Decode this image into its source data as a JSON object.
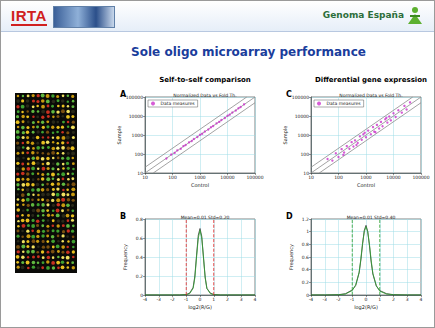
{
  "header": {
    "logos": [
      "IRTA",
      "Genoma España"
    ],
    "title": "Sole oligo microarray performance"
  },
  "chart_data": [
    {
      "panel": "A",
      "heading": "Self-to-self comparison",
      "type": "scatter",
      "subtitle": "Normalized Data vs Fold Th.",
      "x_label": "Control",
      "y_label": "Sample",
      "log": true,
      "grid": true,
      "legend": "top-left",
      "xlim": [
        10,
        100000
      ],
      "ylim": [
        10,
        100000
      ],
      "xticks": [
        10,
        100,
        1000,
        10000,
        100000
      ],
      "yticks": [
        10,
        100,
        1000,
        10000,
        100000
      ],
      "series": [
        {
          "type": "line",
          "color": "#8c8c8c",
          "x": [
            10,
            50000
          ],
          "values": [
            20,
            100000
          ]
        },
        {
          "type": "line",
          "color": "#8c8c8c",
          "x": [
            10,
            100000
          ],
          "values": [
            10,
            100000
          ]
        },
        {
          "type": "line",
          "color": "#8c8c8c",
          "x": [
            20,
            100000
          ],
          "values": [
            10,
            50000
          ]
        },
        {
          "name": "Data measures",
          "type": "scatter",
          "color": "#cc33cc",
          "marker": "circle",
          "x": [
            60,
            90,
            120,
            150,
            200,
            250,
            300,
            400,
            500,
            600,
            800,
            1000,
            1200,
            1500,
            2000,
            2500,
            3000,
            4000,
            5000,
            6000,
            8000,
            10000,
            12000,
            15000,
            20000,
            25000,
            30000,
            40000
          ],
          "values": [
            58,
            95,
            115,
            155,
            190,
            260,
            295,
            410,
            480,
            620,
            790,
            1040,
            1170,
            1530,
            1950,
            2580,
            2950,
            4100,
            4900,
            6150,
            7800,
            10300,
            11800,
            15400,
            19600,
            25500,
            29500,
            41000
          ]
        }
      ]
    },
    {
      "panel": "C",
      "heading": "Differential gene expression",
      "type": "scatter",
      "subtitle": "Normalized Data vs Fold Th.",
      "x_label": "Control",
      "y_label": "Sample",
      "log": true,
      "grid": true,
      "legend": "top-left",
      "xlim": [
        10,
        100000
      ],
      "ylim": [
        10,
        100000
      ],
      "xticks": [
        10,
        100,
        1000,
        10000,
        100000
      ],
      "yticks": [
        10,
        100,
        1000,
        10000,
        100000
      ],
      "series": [
        {
          "type": "line",
          "color": "#8c8c8c",
          "x": [
            10,
            50000
          ],
          "values": [
            20,
            100000
          ]
        },
        {
          "type": "line",
          "color": "#8c8c8c",
          "x": [
            10,
            100000
          ],
          "values": [
            10,
            100000
          ]
        },
        {
          "type": "line",
          "color": "#8c8c8c",
          "x": [
            20,
            100000
          ],
          "values": [
            10,
            50000
          ]
        },
        {
          "name": "Data measures",
          "type": "scatter",
          "color": "#cc33cc",
          "marker": "circle",
          "x": [
            40,
            60,
            80,
            100,
            130,
            160,
            200,
            250,
            300,
            350,
            400,
            500,
            600,
            700,
            800,
            1000,
            1200,
            1500,
            1800,
            2000,
            2500,
            3000,
            3500,
            4000,
            5000,
            6000,
            7000,
            8000,
            10000,
            12000,
            15000,
            20000,
            25000,
            30000,
            40000,
            150,
            450,
            900,
            2200,
            5500
          ],
          "values": [
            55,
            45,
            110,
            70,
            180,
            120,
            260,
            190,
            420,
            250,
            520,
            380,
            850,
            560,
            1100,
            760,
            1700,
            1100,
            2600,
            1500,
            3400,
            2200,
            4900,
            2900,
            6800,
            4500,
            9500,
            5900,
            14000,
            8800,
            20000,
            15000,
            34000,
            22000,
            52000,
            90,
            300,
            1300,
            1400,
            8000
          ]
        }
      ]
    },
    {
      "panel": "B",
      "type": "line",
      "subtitle": "Mean=0.01 Std=0.20",
      "x_label": "log2(R/G)",
      "y_label": "Frequency",
      "grid": true,
      "xlim": [
        -4,
        4
      ],
      "ylim": [
        0,
        0.8
      ],
      "xticks": [
        -4,
        -3,
        -2,
        -1,
        0,
        1,
        2,
        3,
        4
      ],
      "yticks": [
        0,
        0.2,
        0.4,
        0.6,
        0.8
      ],
      "series": [
        {
          "type": "line",
          "color": "#333333",
          "x": [
            -4,
            -3,
            -2,
            -1.5,
            -1,
            -0.75,
            -0.5,
            -0.375,
            -0.25,
            -0.125,
            0,
            0.125,
            0.25,
            0.375,
            0.5,
            0.75,
            1,
            1.5,
            2,
            3,
            4
          ],
          "values": [
            0,
            0,
            0,
            0,
            0.005,
            0.02,
            0.08,
            0.2,
            0.42,
            0.63,
            0.7,
            0.62,
            0.4,
            0.19,
            0.07,
            0.02,
            0.005,
            0,
            0,
            0,
            0
          ]
        },
        {
          "type": "line",
          "color": "#2ca02c",
          "x": [
            -4,
            -3,
            -2,
            -1.5,
            -1,
            -0.75,
            -0.5,
            -0.375,
            -0.25,
            -0.125,
            0,
            0.125,
            0.25,
            0.375,
            0.5,
            0.75,
            1,
            1.5,
            2,
            3,
            4
          ],
          "values": [
            0,
            0,
            0,
            0,
            0.003,
            0.015,
            0.07,
            0.18,
            0.4,
            0.6,
            0.68,
            0.6,
            0.4,
            0.18,
            0.07,
            0.015,
            0.003,
            0,
            0,
            0,
            0
          ]
        },
        {
          "type": "line",
          "color": "#e02020",
          "line_style": "dashed",
          "x": [
            -1,
            -1
          ],
          "values": [
            0,
            0.8
          ]
        },
        {
          "type": "line",
          "color": "#e02020",
          "line_style": "dashed",
          "x": [
            1,
            1
          ],
          "values": [
            0,
            0.8
          ]
        }
      ]
    },
    {
      "panel": "D",
      "type": "line",
      "subtitle": "Mean=0.01 Std=0.40",
      "x_label": "log2(R/G)",
      "y_label": "Frequency",
      "grid": true,
      "xlim": [
        -4,
        4
      ],
      "ylim": [
        0,
        1.2
      ],
      "xticks": [
        -4,
        -3,
        -2,
        -1,
        0,
        1,
        2,
        3,
        4
      ],
      "yticks": [
        0,
        0.2,
        0.4,
        0.6,
        0.8,
        1,
        1.2
      ],
      "series": [
        {
          "type": "line",
          "color": "#333333",
          "x": [
            -4,
            -3,
            -2,
            -1.5,
            -1,
            -0.75,
            -0.5,
            -0.375,
            -0.25,
            -0.125,
            0,
            0.125,
            0.25,
            0.375,
            0.5,
            0.75,
            1,
            1.5,
            2,
            3,
            4
          ],
          "values": [
            0,
            0,
            0.005,
            0.02,
            0.08,
            0.15,
            0.35,
            0.55,
            0.8,
            1.02,
            1.1,
            1.0,
            0.78,
            0.52,
            0.33,
            0.14,
            0.07,
            0.02,
            0.005,
            0,
            0
          ]
        },
        {
          "type": "line",
          "color": "#2ca02c",
          "x": [
            -4,
            -3,
            -2,
            -1.5,
            -1,
            -0.75,
            -0.5,
            -0.375,
            -0.25,
            -0.125,
            0,
            0.125,
            0.25,
            0.375,
            0.5,
            0.75,
            1,
            1.5,
            2,
            3,
            4
          ],
          "values": [
            0,
            0,
            0.003,
            0.015,
            0.07,
            0.16,
            0.36,
            0.57,
            0.82,
            1.0,
            1.08,
            1.0,
            0.8,
            0.55,
            0.34,
            0.15,
            0.06,
            0.015,
            0.003,
            0,
            0
          ]
        },
        {
          "type": "line",
          "color": "#2ca02c",
          "line_style": "dashed",
          "x": [
            -1,
            -1
          ],
          "values": [
            0,
            1.2
          ]
        },
        {
          "type": "line",
          "color": "#2ca02c",
          "line_style": "dashed",
          "x": [
            1,
            1
          ],
          "values": [
            0,
            1.2
          ]
        }
      ]
    }
  ]
}
